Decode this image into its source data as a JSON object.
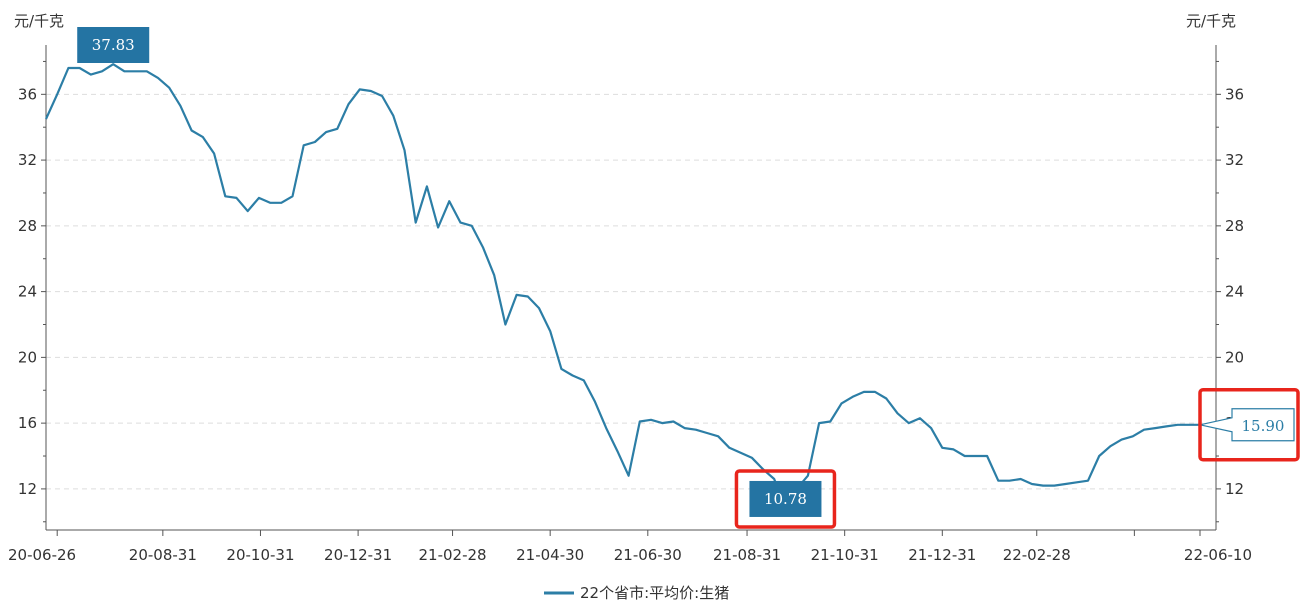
{
  "chart_data": {
    "type": "line",
    "y_unit_left": "元/千克",
    "y_unit_right": "元/千克",
    "ylim": [
      9.5,
      39
    ],
    "y_ticks": [
      12,
      16,
      20,
      24,
      28,
      32,
      36
    ],
    "y_tick_labels": [
      "12",
      "16",
      "20",
      "24",
      "28",
      "32",
      "36"
    ],
    "xlim": [
      "2020-06-19",
      "2022-06-20"
    ],
    "x_ticks": [
      "2020-06-26",
      "2020-08-31",
      "2020-10-31",
      "2020-12-31",
      "2021-02-28",
      "2021-04-30",
      "2021-06-30",
      "2021-08-31",
      "2021-10-31",
      "2021-12-31",
      "2022-02-28",
      "2022-06-10"
    ],
    "x_tick_labels": [
      "20-06-26",
      "20-08-31",
      "20-10-31",
      "20-12-31",
      "21-02-28",
      "21-04-30",
      "21-06-30",
      "21-08-31",
      "21-10-31",
      "21-12-31",
      "22-02-28",
      "22-06-10"
    ],
    "extra_minor_ticks": [
      "2022-04-30"
    ],
    "grid": true,
    "grid_style": "dashed",
    "legend_position": "bottom-center",
    "series": [
      {
        "name": "22个省市:平均价:生猪",
        "color": "#2c7ea6",
        "x": [
          "2020-06-19",
          "2020-06-26",
          "2020-07-03",
          "2020-07-10",
          "2020-07-17",
          "2020-07-24",
          "2020-07-31",
          "2020-08-07",
          "2020-08-14",
          "2020-08-21",
          "2020-08-28",
          "2020-09-04",
          "2020-09-11",
          "2020-09-18",
          "2020-09-25",
          "2020-10-02",
          "2020-10-09",
          "2020-10-16",
          "2020-10-23",
          "2020-10-30",
          "2020-11-06",
          "2020-11-13",
          "2020-11-20",
          "2020-11-27",
          "2020-12-04",
          "2020-12-11",
          "2020-12-18",
          "2020-12-25",
          "2021-01-01",
          "2021-01-08",
          "2021-01-15",
          "2021-01-22",
          "2021-01-29",
          "2021-02-05",
          "2021-02-12",
          "2021-02-19",
          "2021-02-26",
          "2021-03-05",
          "2021-03-12",
          "2021-03-19",
          "2021-03-26",
          "2021-04-02",
          "2021-04-09",
          "2021-04-16",
          "2021-04-23",
          "2021-04-30",
          "2021-05-07",
          "2021-05-14",
          "2021-05-21",
          "2021-05-28",
          "2021-06-04",
          "2021-06-11",
          "2021-06-18",
          "2021-06-25",
          "2021-07-02",
          "2021-07-09",
          "2021-07-16",
          "2021-07-23",
          "2021-07-30",
          "2021-08-06",
          "2021-08-13",
          "2021-08-20",
          "2021-08-27",
          "2021-09-03",
          "2021-09-10",
          "2021-09-17",
          "2021-09-24",
          "2021-10-01",
          "2021-10-08",
          "2021-10-15",
          "2021-10-22",
          "2021-10-29",
          "2021-11-05",
          "2021-11-12",
          "2021-11-19",
          "2021-11-26",
          "2021-12-03",
          "2021-12-10",
          "2021-12-17",
          "2021-12-24",
          "2021-12-31",
          "2022-01-07",
          "2022-01-14",
          "2022-01-21",
          "2022-01-28",
          "2022-02-04",
          "2022-02-11",
          "2022-02-18",
          "2022-02-25",
          "2022-03-04",
          "2022-03-11",
          "2022-03-18",
          "2022-03-25",
          "2022-04-01",
          "2022-04-08",
          "2022-04-15",
          "2022-04-22",
          "2022-04-29",
          "2022-05-06",
          "2022-05-13",
          "2022-05-20",
          "2022-05-27",
          "2022-06-03",
          "2022-06-10"
        ],
        "values": [
          34.5,
          36.0,
          37.6,
          37.6,
          37.2,
          37.4,
          37.83,
          37.4,
          37.4,
          37.4,
          37.0,
          36.4,
          35.3,
          33.8,
          33.4,
          32.4,
          29.8,
          29.7,
          28.9,
          29.7,
          29.4,
          29.4,
          29.8,
          32.9,
          33.1,
          33.7,
          33.9,
          35.4,
          36.3,
          36.2,
          35.9,
          34.7,
          32.6,
          28.2,
          30.4,
          27.9,
          29.5,
          28.2,
          28.0,
          26.7,
          25.0,
          22.0,
          23.8,
          23.7,
          23.0,
          21.6,
          19.3,
          18.9,
          18.6,
          17.3,
          15.7,
          14.3,
          12.8,
          16.1,
          16.2,
          16.0,
          16.1,
          15.7,
          15.6,
          15.4,
          15.2,
          14.5,
          14.2,
          13.9,
          13.2,
          12.6,
          10.78,
          12.0,
          12.8,
          16.0,
          16.1,
          17.2,
          17.6,
          17.9,
          17.9,
          17.5,
          16.6,
          16.0,
          16.3,
          15.7,
          14.5,
          14.4,
          14.0,
          14.0,
          14.0,
          12.5,
          12.5,
          12.6,
          12.3,
          12.2,
          12.2,
          12.3,
          12.4,
          12.5,
          14.0,
          14.6,
          15.0,
          15.2,
          15.6,
          15.7,
          15.8,
          15.9,
          15.9,
          15.9
        ]
      }
    ],
    "annotations": [
      {
        "text": "37.83",
        "x": "2020-07-31",
        "y": 37.83,
        "style": "filled",
        "highlighted": false
      },
      {
        "text": "10.78",
        "x": "2021-09-24",
        "y": 10.78,
        "style": "filled",
        "highlighted": true
      },
      {
        "text": "15.90",
        "x": "2022-06-10",
        "y": 15.9,
        "style": "outlined",
        "highlighted": true
      }
    ],
    "colors": {
      "line": "#2c7ea6",
      "label_fill": "#2474a3",
      "highlight": "#e8251c",
      "axis": "#555555",
      "grid": "#dddddd"
    }
  }
}
